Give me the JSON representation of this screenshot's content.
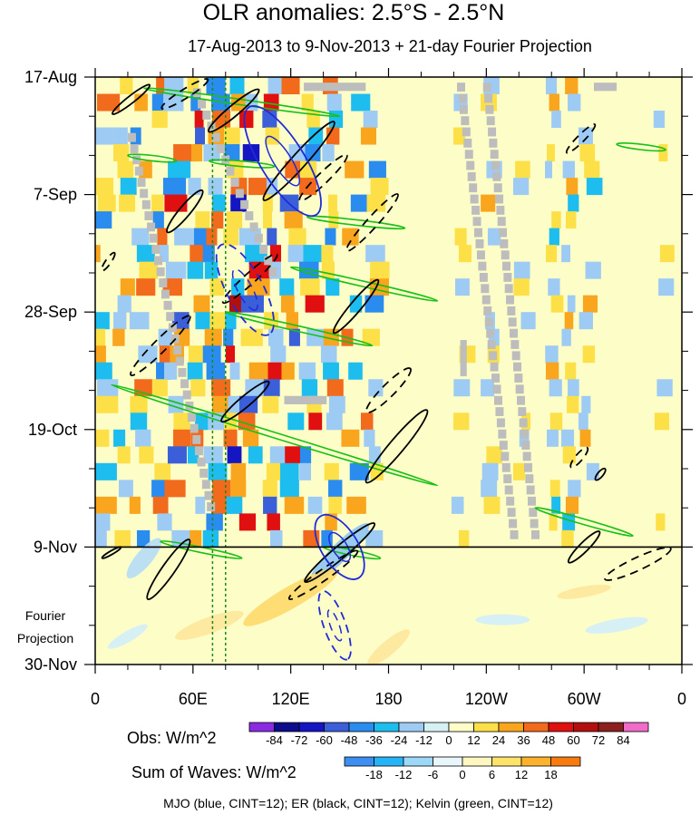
{
  "chart_data": {
    "type": "heatmap",
    "title": "OLR anomalies: 2.5°S - 2.5°N",
    "subtitle": "17-Aug-2013 to 9-Nov-2013 + 21-day Fourier Projection",
    "x_ticks": [
      "0",
      "60E",
      "120E",
      "180",
      "120W",
      "60W",
      "0"
    ],
    "x_tick_lon": [
      0,
      60,
      120,
      180,
      240,
      300,
      360
    ],
    "x_range": [
      0,
      360
    ],
    "y_ticks": [
      "17-Aug",
      "7-Sep",
      "28-Sep",
      "19-Oct",
      "9-Nov",
      "30-Nov"
    ],
    "y_tick_day": [
      0,
      21,
      42,
      63,
      84,
      105
    ],
    "y_range_days": [
      0,
      105
    ],
    "observation_end_day": 84,
    "projection_label": [
      "Fourier",
      "Projection"
    ],
    "obs_colorbar": {
      "label": "Obs: W/m^2",
      "levels": [
        "-84",
        "-72",
        "-60",
        "-48",
        "-36",
        "-24",
        "-12",
        "0",
        "12",
        "24",
        "36",
        "48",
        "60",
        "72",
        "84"
      ],
      "colors": [
        "#8a2be2",
        "#0c0c8c",
        "#1515c4",
        "#3a5fd8",
        "#2b8cf0",
        "#1ebdf0",
        "#9ecbf4",
        "#d6f1f4",
        "#fdfdc8",
        "#fde047",
        "#f9a51d",
        "#f26a1b",
        "#e01010",
        "#b40f0f",
        "#8c2020",
        "#f06cc8"
      ]
    },
    "waves_colorbar": {
      "label": "Sum of Waves: W/m^2",
      "levels": [
        "-18",
        "-12",
        "-6",
        "0",
        "6",
        "12",
        "18"
      ],
      "colors": [
        "#3d8ef0",
        "#25b4f5",
        "#9ed8f8",
        "#e9f6fb",
        "#fff6c0",
        "#fde36a",
        "#fdb22e",
        "#f77b0f"
      ]
    },
    "footnote": "MJO (blue, CINT=12); ER (black, CINT=12); Kelvin (green, CINT=12)",
    "series": [
      {
        "name": "MJO",
        "color": "#1f2bd8"
      },
      {
        "name": "ER",
        "color": "#000000"
      },
      {
        "name": "Kelvin",
        "color": "#18c018"
      }
    ],
    "mjo_reference_lines_lon": [
      72,
      80
    ],
    "bands": [
      {
        "lon": 5,
        "width": 14,
        "amp": 40,
        "period": 11
      },
      {
        "lon": 18,
        "width": 10,
        "amp": 34,
        "period": 9
      },
      {
        "lon": 30,
        "width": 12,
        "amp": 46,
        "period": 13
      },
      {
        "lon": 42,
        "width": 10,
        "amp": 52,
        "period": 8
      },
      {
        "lon": 52,
        "width": 14,
        "amp": 60,
        "period": 10
      },
      {
        "lon": 64,
        "width": 10,
        "amp": 66,
        "period": 7
      },
      {
        "lon": 75,
        "width": 12,
        "amp": 60,
        "period": 12
      },
      {
        "lon": 86,
        "width": 10,
        "amp": 70,
        "period": 9
      },
      {
        "lon": 98,
        "width": 14,
        "amp": 64,
        "period": 11
      },
      {
        "lon": 110,
        "width": 10,
        "amp": 58,
        "period": 8
      },
      {
        "lon": 122,
        "width": 12,
        "amp": 56,
        "period": 10
      },
      {
        "lon": 134,
        "width": 12,
        "amp": 52,
        "period": 14
      },
      {
        "lon": 146,
        "width": 10,
        "amp": 48,
        "period": 9
      },
      {
        "lon": 160,
        "width": 12,
        "amp": 44,
        "period": 12
      },
      {
        "lon": 172,
        "width": 12,
        "amp": 40,
        "period": 10
      },
      {
        "lon": 226,
        "width": 10,
        "amp": 22,
        "period": 13
      },
      {
        "lon": 244,
        "width": 10,
        "amp": 26,
        "period": 11
      },
      {
        "lon": 264,
        "width": 10,
        "amp": 24,
        "period": 9
      },
      {
        "lon": 282,
        "width": 8,
        "amp": 30,
        "period": 8
      },
      {
        "lon": 292,
        "width": 8,
        "amp": 46,
        "period": 7
      },
      {
        "lon": 304,
        "width": 10,
        "amp": 30,
        "period": 10
      },
      {
        "lon": 350,
        "width": 10,
        "amp": 18,
        "period": 12
      }
    ],
    "grey_missing_strips": [
      {
        "lon0": 222,
        "day0": 1,
        "lon1": 255,
        "day1": 82
      },
      {
        "lon0": 238,
        "day0": 1,
        "lon1": 268,
        "day1": 82
      },
      {
        "lon0": 60,
        "day0": 2,
        "lon1": 108,
        "day1": 35
      },
      {
        "lon0": 20,
        "day0": 10,
        "lon1": 70,
        "day1": 78
      }
    ],
    "grey_missing_blocks": [
      {
        "lon0": 306,
        "day0": 1,
        "lon1": 320,
        "day1": 2
      },
      {
        "lon0": 128,
        "day0": 1,
        "lon1": 166,
        "day1": 2
      },
      {
        "lon0": 116,
        "day0": 57,
        "lon1": 142,
        "day1": 58
      },
      {
        "lon0": 224,
        "day0": 47,
        "lon1": 228,
        "day1": 53
      }
    ],
    "kelvin_waves": [
      {
        "lon0": 30,
        "day0": 2,
        "lon1": 150,
        "day1": 7
      },
      {
        "lon0": 20,
        "day0": 14,
        "lon1": 50,
        "day1": 15
      },
      {
        "lon0": 70,
        "day0": 15,
        "lon1": 110,
        "day1": 16
      },
      {
        "lon0": 130,
        "day0": 25,
        "lon1": 190,
        "day1": 27
      },
      {
        "lon0": 120,
        "day0": 34,
        "lon1": 210,
        "day1": 40
      },
      {
        "lon0": 80,
        "day0": 42,
        "lon1": 170,
        "day1": 48
      },
      {
        "lon0": 10,
        "day0": 55,
        "lon1": 210,
        "day1": 73
      },
      {
        "lon0": 40,
        "day0": 83,
        "lon1": 90,
        "day1": 86
      },
      {
        "lon0": 270,
        "day0": 77,
        "lon1": 330,
        "day1": 82
      },
      {
        "lon0": 320,
        "day0": 12,
        "lon1": 350,
        "day1": 13
      },
      {
        "lon0": 140,
        "day0": 84,
        "lon1": 175,
        "day1": 86
      }
    ],
    "er_waves": [
      {
        "lon": 22,
        "day": 4,
        "rx": 26,
        "ry": 4,
        "rot": -38,
        "dash": false
      },
      {
        "lon": 55,
        "day": 3,
        "rx": 30,
        "ry": 5,
        "rot": -32,
        "dash": true
      },
      {
        "lon": 85,
        "day": 6,
        "rx": 36,
        "ry": 6,
        "rot": -40,
        "dash": false
      },
      {
        "lon": 125,
        "day": 15,
        "rx": 58,
        "ry": 8,
        "rot": -48,
        "dash": false
      },
      {
        "lon": 140,
        "day": 18,
        "rx": 36,
        "ry": 6,
        "rot": -44,
        "dash": true
      },
      {
        "lon": 170,
        "day": 26,
        "rx": 42,
        "ry": 6,
        "rot": -48,
        "dash": true
      },
      {
        "lon": 160,
        "day": 41,
        "rx": 38,
        "ry": 6,
        "rot": -50,
        "dash": false
      },
      {
        "lon": 55,
        "day": 24,
        "rx": 30,
        "ry": 6,
        "rot": -50,
        "dash": false
      },
      {
        "lon": 95,
        "day": 36,
        "rx": 40,
        "ry": 6,
        "rot": -42,
        "dash": true
      },
      {
        "lon": 40,
        "day": 48,
        "rx": 46,
        "ry": 7,
        "rot": -45,
        "dash": true
      },
      {
        "lon": 92,
        "day": 58,
        "rx": 34,
        "ry": 6,
        "rot": -40,
        "dash": false
      },
      {
        "lon": 180,
        "day": 56,
        "rx": 34,
        "ry": 7,
        "rot": -45,
        "dash": true
      },
      {
        "lon": 185,
        "day": 66,
        "rx": 52,
        "ry": 8,
        "rot": -50,
        "dash": false
      },
      {
        "lon": 150,
        "day": 85,
        "rx": 50,
        "ry": 7,
        "rot": -40,
        "dash": false
      },
      {
        "lon": 140,
        "day": 89,
        "rx": 46,
        "ry": 6,
        "rot": -35,
        "dash": true
      },
      {
        "lon": 45,
        "day": 88,
        "rx": 40,
        "ry": 7,
        "rot": -55,
        "dash": false
      },
      {
        "lon": 298,
        "day": 11,
        "rx": 22,
        "ry": 4,
        "rot": -45,
        "dash": true
      },
      {
        "lon": 297,
        "day": 68,
        "rx": 14,
        "ry": 4,
        "rot": -50,
        "dash": true
      },
      {
        "lon": 310,
        "day": 71,
        "rx": 8,
        "ry": 3,
        "rot": -50,
        "dash": false
      },
      {
        "lon": 300,
        "day": 84,
        "rx": 24,
        "ry": 5,
        "rot": -45,
        "dash": false
      },
      {
        "lon": 333,
        "day": 87,
        "rx": 40,
        "ry": 7,
        "rot": -25,
        "dash": true
      },
      {
        "lon": 8,
        "day": 33,
        "rx": 12,
        "ry": 3,
        "rot": -55,
        "dash": true
      },
      {
        "lon": 10,
        "day": 85,
        "rx": 12,
        "ry": 2,
        "rot": -30,
        "dash": false
      }
    ],
    "mjo_waves": [
      {
        "lon": 115,
        "day": 15,
        "rx": 70,
        "ry": 24,
        "rot": 58,
        "dash": false
      },
      {
        "lon": 92,
        "day": 38,
        "rx": 56,
        "ry": 20,
        "rot": 62,
        "dash": true
      },
      {
        "lon": 150,
        "day": 84,
        "rx": 40,
        "ry": 20,
        "rot": 58,
        "dash": false
      },
      {
        "lon": 147,
        "day": 98,
        "rx": 40,
        "ry": 12,
        "rot": 70,
        "dash": true
      }
    ],
    "projection_blobs": [
      {
        "lon": 30,
        "day": 86,
        "rx": 28,
        "ry": 9,
        "rot": -50,
        "color": "#b6dcf6"
      },
      {
        "lon": 150,
        "day": 85,
        "rx": 45,
        "ry": 10,
        "rot": -45,
        "color": "#8ec4f4"
      },
      {
        "lon": 120,
        "day": 93,
        "rx": 60,
        "ry": 12,
        "rot": -30,
        "color": "#fdd96a"
      },
      {
        "lon": 70,
        "day": 98,
        "rx": 40,
        "ry": 9,
        "rot": -20,
        "color": "#fde79a"
      },
      {
        "lon": 180,
        "day": 102,
        "rx": 30,
        "ry": 8,
        "rot": -40,
        "color": "#fde79a"
      },
      {
        "lon": 300,
        "day": 92,
        "rx": 30,
        "ry": 6,
        "rot": -10,
        "color": "#fde79a"
      },
      {
        "lon": 250,
        "day": 97,
        "rx": 30,
        "ry": 6,
        "rot": 0,
        "color": "#d2eef9"
      },
      {
        "lon": 320,
        "day": 98,
        "rx": 35,
        "ry": 7,
        "rot": -10,
        "color": "#d2eef9"
      },
      {
        "lon": 20,
        "day": 100,
        "rx": 25,
        "ry": 6,
        "rot": -30,
        "color": "#d2eef9"
      }
    ]
  }
}
